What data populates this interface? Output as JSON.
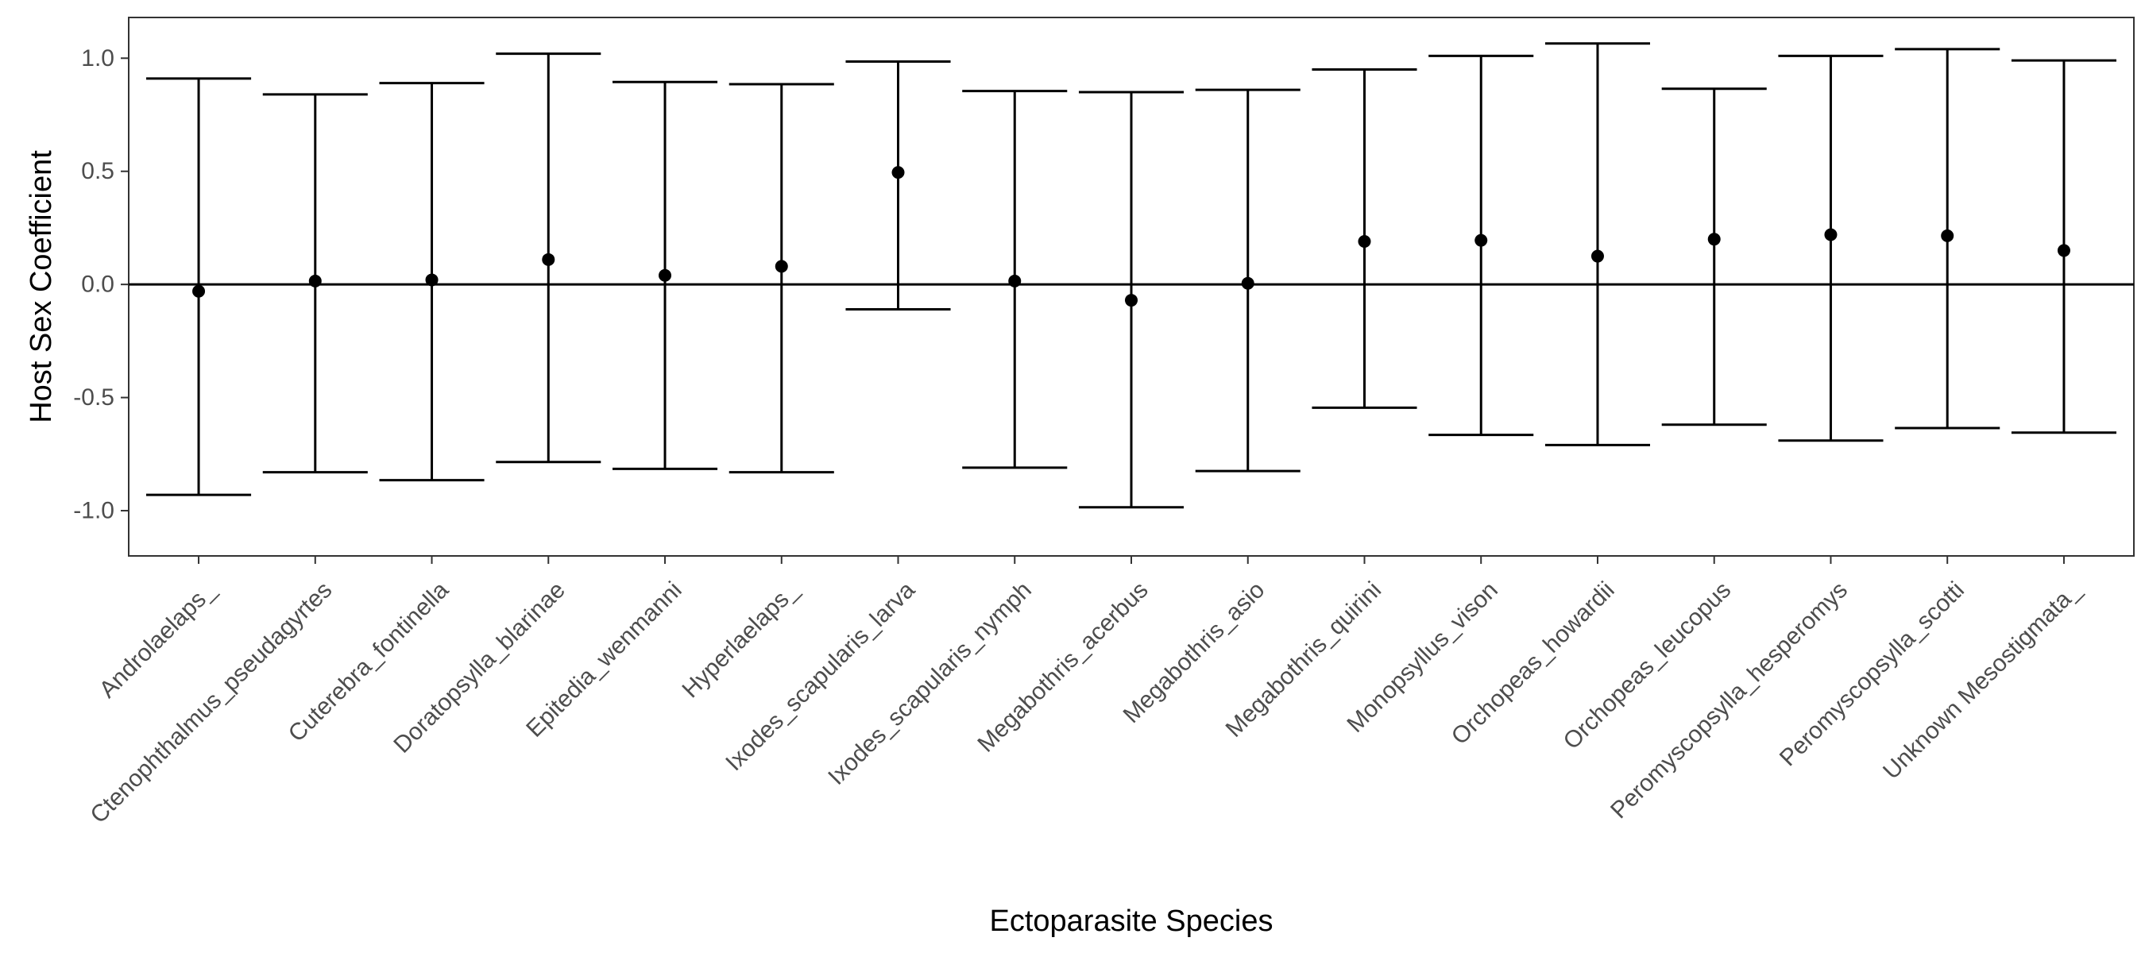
{
  "chart_data": {
    "type": "errorbar",
    "xlabel": "Ectoparasite Species",
    "ylabel": "Host Sex Coefficient",
    "ylim": [
      -1.2,
      1.18
    ],
    "yticks": [
      -1.0,
      -0.5,
      0.0,
      0.5,
      1.0
    ],
    "ytick_labels": [
      "-1.0",
      "-0.5",
      "0.0",
      "0.5",
      "1.0"
    ],
    "reference_line": 0.0,
    "grid": false,
    "colors": {
      "marks": "#000000",
      "panel_border": "#333333",
      "tick_text": "#4d4d4d"
    },
    "categories": [
      "Androlaelaps_",
      "Ctenophthalmus_pseudagyrtes",
      "Cuterebra_fontinella",
      "Doratopsylla_blarinae",
      "Epitedia_wenmanni",
      "Hyperlaelaps_",
      "Ixodes_scapularis_larva",
      "Ixodes_scapularis_nymph",
      "Megabothris_acerbus",
      "Megabothris_asio",
      "Megabothris_quirini",
      "Monopsyllus_vison",
      "Orchopeas_howardii",
      "Orchopeas_leucopus",
      "Peromyscopsylla_hesperomys",
      "Peromyscopsylla_scotti",
      "Unknown Mesostigmata_"
    ],
    "estimates": [
      -0.03,
      0.015,
      0.02,
      0.11,
      0.04,
      0.08,
      0.495,
      0.015,
      -0.07,
      0.005,
      0.19,
      0.195,
      0.125,
      0.2,
      0.22,
      0.215,
      0.15
    ],
    "lower": [
      -0.93,
      -0.83,
      -0.865,
      -0.785,
      -0.815,
      -0.83,
      -0.11,
      -0.81,
      -0.985,
      -0.825,
      -0.545,
      -0.665,
      -0.71,
      -0.62,
      -0.69,
      -0.635,
      -0.655
    ],
    "upper": [
      0.91,
      0.84,
      0.89,
      1.02,
      0.895,
      0.885,
      0.985,
      0.855,
      0.85,
      0.86,
      0.95,
      1.01,
      1.065,
      0.865,
      1.01,
      1.04,
      0.99
    ]
  }
}
